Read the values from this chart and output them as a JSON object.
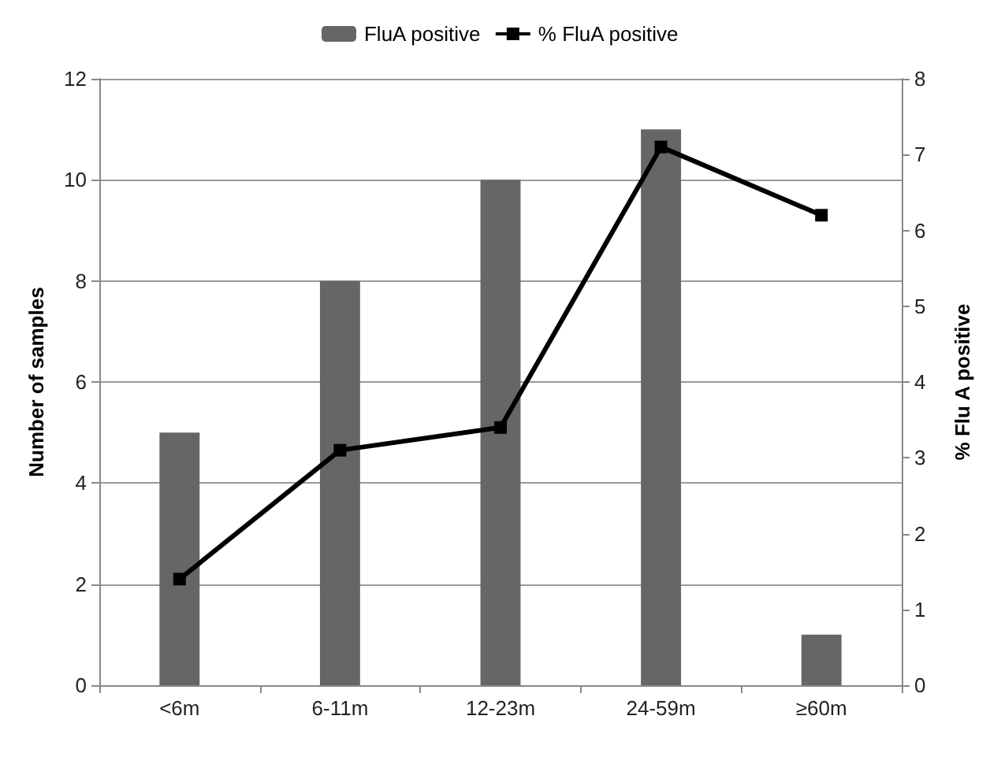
{
  "chart_data": {
    "type": "bar",
    "ylabel": "Number of samples",
    "y2label": "% Flu A positive",
    "categories": [
      "<6m",
      "6-11m",
      "12-23m",
      "24-59m",
      "≥60m"
    ],
    "series": [
      {
        "name": "FluA positive",
        "color": "#666666",
        "values": [
          5,
          8,
          10,
          11,
          1
        ]
      },
      {
        "name": "% FluA positive",
        "type": "line",
        "axis": "y2",
        "color": "#000000",
        "values": [
          1.4,
          3.1,
          3.4,
          7.1,
          6.2
        ]
      }
    ],
    "ylim": [
      0,
      12
    ],
    "yticks": [
      0,
      2,
      4,
      6,
      8,
      10,
      12
    ],
    "y2lim": [
      0,
      8
    ],
    "y2ticks": [
      0,
      1,
      2,
      3,
      4,
      5,
      6,
      7,
      8
    ],
    "grid": "y",
    "legend": "top",
    "marker": "square",
    "line_style": "solid"
  }
}
